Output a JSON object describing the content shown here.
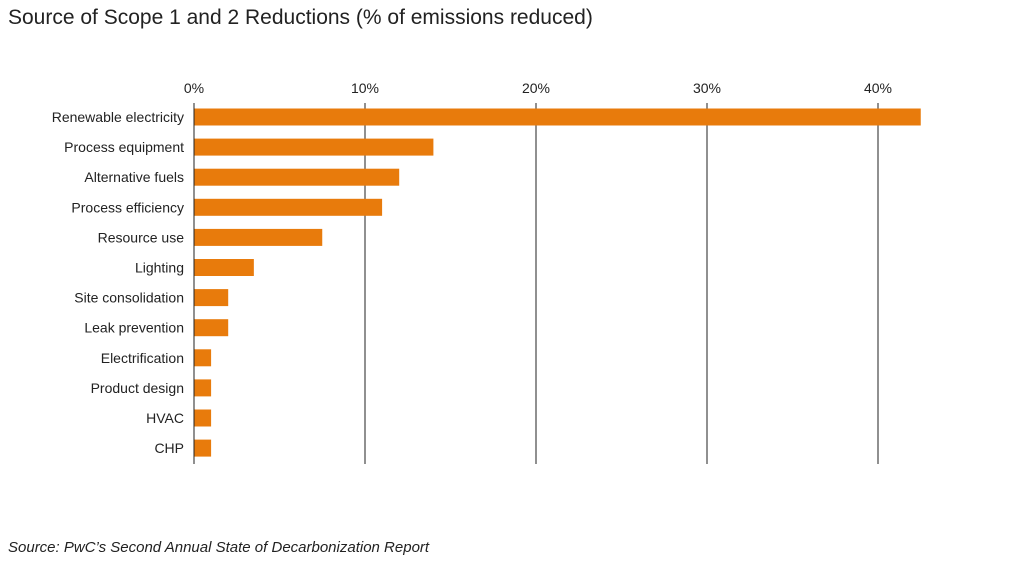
{
  "title": "Source of Scope 1 and 2 Reductions (% of emissions reduced)",
  "source": "Source: PwC’s Second Annual State of Decarbonization Report",
  "chart_data": {
    "type": "bar",
    "orientation": "horizontal",
    "categories": [
      "Renewable electricity",
      "Process equipment",
      "Alternative fuels",
      "Process efficiency",
      "Resource use",
      "Lighting",
      "Site consolidation",
      "Leak prevention",
      "Electrification",
      "Product design",
      "HVAC",
      "CHP"
    ],
    "values": [
      42.5,
      14,
      12,
      11,
      7.5,
      3.5,
      2,
      2,
      1,
      1,
      1,
      1
    ],
    "xlim": [
      0,
      45
    ],
    "xticks": [
      0,
      10,
      20,
      30,
      40
    ],
    "tick_labels": [
      "0%",
      "10%",
      "20%",
      "30%",
      "40%"
    ],
    "bar_color": "#E87B0C",
    "grid": "vertical",
    "axis_position": "top"
  }
}
